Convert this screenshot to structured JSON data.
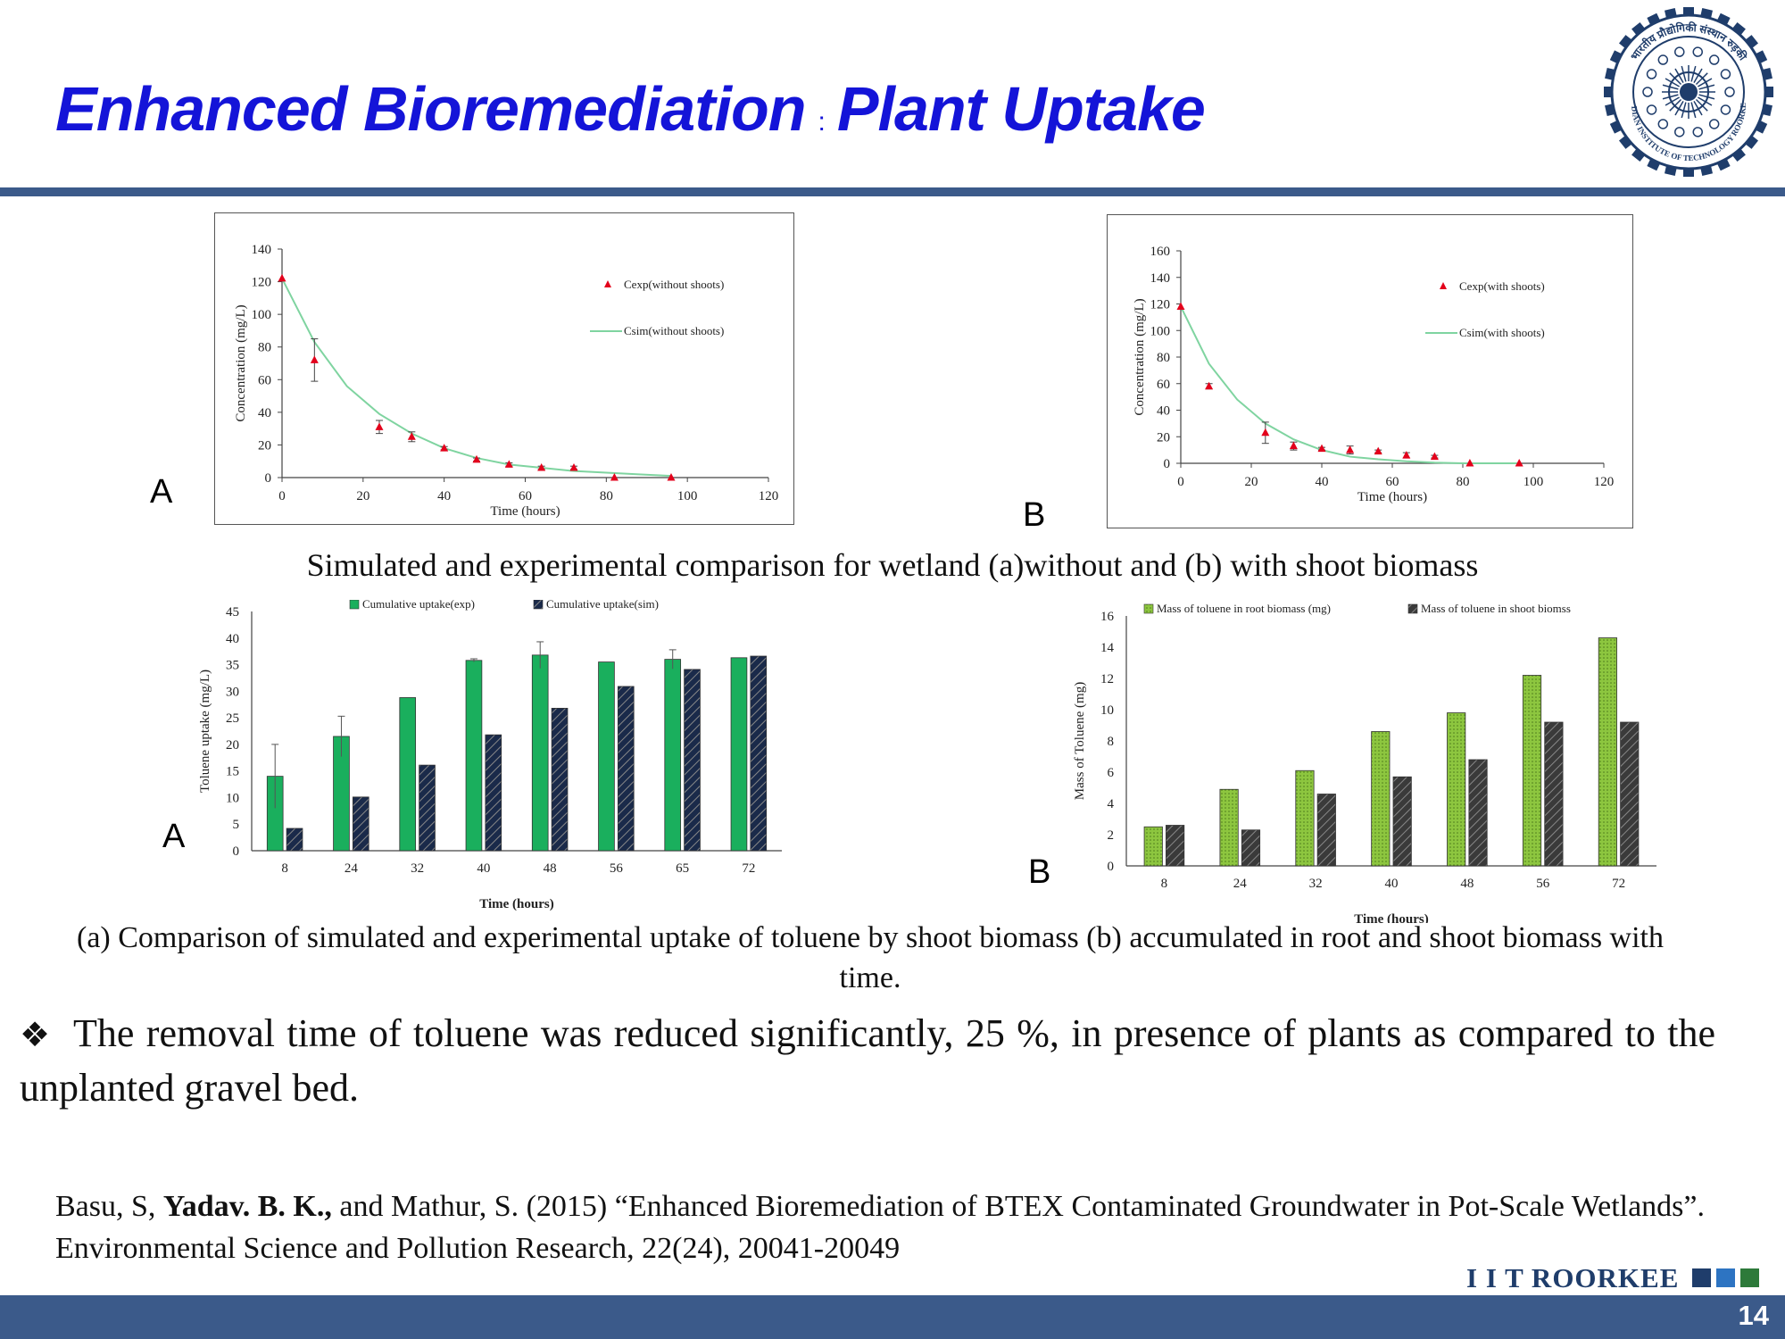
{
  "slide": {
    "title_part1": "Enhanced Bioremediation",
    "title_sep": ":",
    "title_part2": "Plant Uptake",
    "page_number": "14",
    "brand": "I I T ROORKEE",
    "logo_text_top": "भारतीय प्रौद्योगिकी संस्थान रुड़की",
    "logo_text_bottom": "INDIAN INSTITUTE OF TECHNOLOGY ROORKEE",
    "accent_color": "#3b5a8a",
    "title_color": "#1414d8"
  },
  "labels": {
    "chart1": "A",
    "chart2": "B",
    "chart3": "A",
    "chart4": "B"
  },
  "captions": {
    "top": "Simulated and experimental comparison for wetland (a)without and (b) with shoot biomass",
    "bottom": "(a) Comparison of simulated and experimental uptake of toluene by shoot biomass (b) accumulated in root and shoot biomass with time."
  },
  "bullet": "The removal time of toluene was reduced significantly, 25 %, in presence of plants as compared to the unplanted gravel bed.",
  "reference": {
    "before": "Basu, S, ",
    "bold": "Yadav. B. K.,",
    "after": " and Mathur, S. (2015) “Enhanced Bioremediation of BTEX Contaminated Groundwater in Pot-Scale Wetlands”. Environmental Science and Pollution Research, 22(24), 20041-20049"
  },
  "chart_data": [
    {
      "type": "scatter",
      "xlabel": "Time (hours)",
      "ylabel": "Concentration (mg/L)",
      "xlim": [
        0,
        120
      ],
      "ylim": [
        0,
        140
      ],
      "xticks": [
        0,
        20,
        40,
        60,
        80,
        100,
        120
      ],
      "yticks": [
        0,
        20,
        40,
        60,
        80,
        100,
        120,
        140
      ],
      "legend_position": "top-right",
      "experimental": {
        "name": "Cexp(without shoots)",
        "color": "#e3001b",
        "x": [
          0,
          8,
          24,
          32,
          40,
          48,
          56,
          64,
          72,
          82,
          96
        ],
        "y": [
          122,
          72,
          31,
          25,
          18,
          11,
          8,
          6,
          6,
          0,
          0
        ],
        "err": [
          0,
          13,
          4,
          3,
          1,
          1,
          1,
          1,
          1,
          0,
          0
        ]
      },
      "simulated": {
        "name": "Csim(without shoots)",
        "color": "#7fd4a0",
        "x": [
          0,
          8,
          16,
          24,
          32,
          40,
          48,
          56,
          64,
          72,
          80,
          88,
          96
        ],
        "y": [
          122,
          83,
          56,
          39,
          27,
          18,
          12,
          8,
          6,
          4,
          3,
          2,
          1
        ]
      }
    },
    {
      "type": "scatter",
      "xlabel": "Time (hours)",
      "ylabel": "Concentration (mg/L)",
      "xlim": [
        0,
        120
      ],
      "ylim": [
        0,
        160
      ],
      "xticks": [
        0,
        20,
        40,
        60,
        80,
        100,
        120
      ],
      "yticks": [
        0,
        20,
        40,
        60,
        80,
        100,
        120,
        140,
        160
      ],
      "legend_position": "top-right",
      "experimental": {
        "name": "Cexp(with shoots)",
        "color": "#e3001b",
        "x": [
          0,
          8,
          24,
          32,
          40,
          48,
          56,
          64,
          72,
          82,
          96
        ],
        "y": [
          118,
          58,
          23,
          13,
          11,
          10,
          9,
          6,
          5,
          0,
          0
        ],
        "err": [
          0,
          2,
          8,
          3,
          1,
          3,
          1,
          2,
          1,
          0,
          0
        ]
      },
      "simulated": {
        "name": "Csim(with shoots)",
        "color": "#7fd4a0",
        "x": [
          0,
          8,
          16,
          24,
          32,
          40,
          48,
          56,
          64,
          72,
          80,
          96
        ],
        "y": [
          118,
          75,
          48,
          30,
          18,
          10,
          5,
          3,
          1.5,
          0.5,
          0,
          0
        ]
      }
    },
    {
      "type": "bar",
      "xlabel": "Time (hours)",
      "ylabel": "Toluene uptake (mg/L)",
      "categories": [
        "8",
        "24",
        "32",
        "40",
        "48",
        "56",
        "65",
        "72"
      ],
      "ylim": [
        0,
        45
      ],
      "yticks": [
        0,
        5,
        10,
        15,
        20,
        25,
        30,
        35,
        40,
        45
      ],
      "legend_position": "top",
      "series": [
        {
          "name": "Cumulative uptake(exp)",
          "color": "#1aaf5d",
          "pattern": "solid",
          "values": [
            14,
            21.5,
            28.8,
            35.8,
            36.8,
            35.5,
            36,
            36.3
          ],
          "err": [
            6,
            3.8,
            0,
            0.3,
            2.5,
            0,
            1.8,
            0
          ]
        },
        {
          "name": "Cumulative uptake(sim)",
          "color": "#1a2a4a",
          "pattern": "hatch",
          "values": [
            4.2,
            10.1,
            16.1,
            21.8,
            26.8,
            30.9,
            34.1,
            36.6
          ]
        }
      ]
    },
    {
      "type": "bar",
      "xlabel": "Time (hours)",
      "ylabel": "Mass of Toluene (mg)",
      "categories": [
        "8",
        "24",
        "32",
        "40",
        "48",
        "56",
        "72"
      ],
      "ylim": [
        0,
        16
      ],
      "yticks": [
        0,
        2,
        4,
        6,
        8,
        10,
        12,
        14,
        16
      ],
      "legend_position": "top",
      "series": [
        {
          "name": "Mass of toluene in root biomass (mg)",
          "color": "#8dc63f",
          "pattern": "dots",
          "values": [
            2.5,
            4.9,
            6.1,
            8.6,
            9.8,
            12.2,
            14.6
          ]
        },
        {
          "name": "Mass of toluene in shoot biomss",
          "color": "#3a3a3a",
          "pattern": "hatch",
          "values": [
            2.6,
            2.3,
            4.6,
            5.7,
            6.8,
            9.2,
            9.2
          ]
        }
      ]
    }
  ]
}
